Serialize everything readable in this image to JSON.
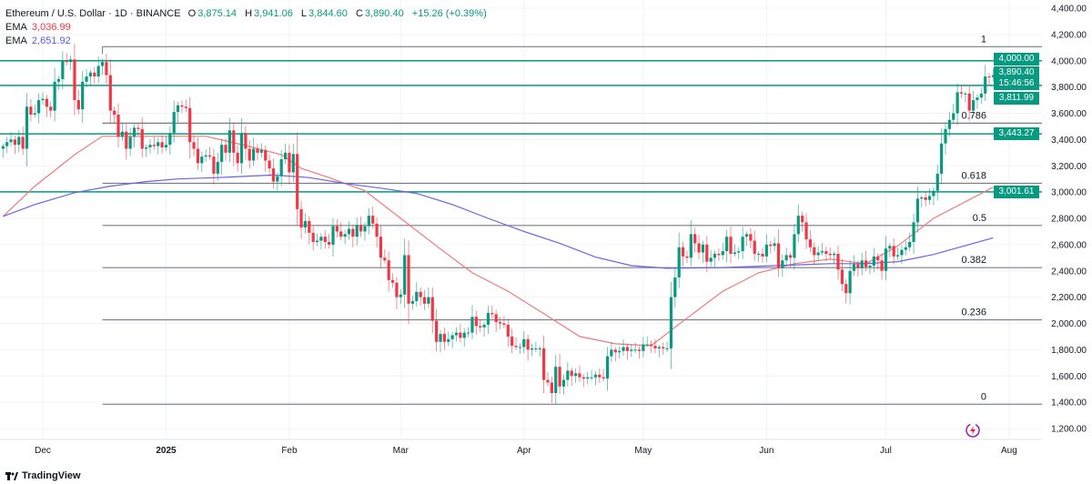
{
  "header": {
    "symbol": "Ethereum / U.S. Dollar · 1D · BINANCE",
    "open_label": "O",
    "open": "3,875.14",
    "high_label": "H",
    "high": "3,941.06",
    "low_label": "L",
    "low": "3,844.60",
    "close_label": "C",
    "close": "3,890.40",
    "change": "+15.26 (+0.39%)",
    "ema1_label": "EMA",
    "ema1_value": "3,036.99",
    "ema2_label": "EMA",
    "ema2_value": "2,651.92"
  },
  "colors": {
    "up": "#089981",
    "down": "#f23645",
    "ema1": "#f07a7a",
    "ema2": "#6a63e8",
    "hline": "#089981",
    "fib": "#787b86"
  },
  "price_labels": {
    "last_price": "3,890.40",
    "countdown": "15:46:56",
    "levels": [
      "4,000.00",
      "3,811.99",
      "3,443.27",
      "3,001.61"
    ]
  },
  "footer": {
    "brand": "TradingView"
  },
  "chart_data": {
    "type": "candlestick",
    "title": "Ethereum / U.S. Dollar · 1D · BINANCE",
    "ylim": [
      1200,
      4400
    ],
    "y_ticks": [
      "4,400.00",
      "4,200.00",
      "4,000.00",
      "3,800.00",
      "3,600.00",
      "3,400.00",
      "3,200.00",
      "3,000.00",
      "2,800.00",
      "2,600.00",
      "2,400.00",
      "2,200.00",
      "2,000.00",
      "1,800.00",
      "1,600.00",
      "1,400.00",
      "1,200.00"
    ],
    "x_ticks": [
      {
        "date": "2024-12-01",
        "label": "Dec"
      },
      {
        "date": "2025-01-01",
        "label": "2025"
      },
      {
        "date": "2025-02-01",
        "label": "Feb"
      },
      {
        "date": "2025-03-01",
        "label": "Mar"
      },
      {
        "date": "2025-04-01",
        "label": "Apr"
      },
      {
        "date": "2025-05-01",
        "label": "May"
      },
      {
        "date": "2025-06-01",
        "label": "Jun"
      },
      {
        "date": "2025-07-01",
        "label": "Jul"
      },
      {
        "date": "2025-08-01",
        "label": "Aug"
      }
    ],
    "start_date": "2024-11-21",
    "closes": [
      3350,
      3380,
      3400,
      3360,
      3420,
      3330,
      3650,
      3590,
      3600,
      3700,
      3710,
      3650,
      3620,
      3840,
      3860,
      4000,
      3990,
      4010,
      3700,
      3630,
      3840,
      3880,
      3910,
      3880,
      3960,
      3990,
      3890,
      3620,
      3590,
      3420,
      3460,
      3330,
      3420,
      3490,
      3480,
      3330,
      3340,
      3360,
      3350,
      3380,
      3340,
      3360,
      3450,
      3610,
      3660,
      3650,
      3640,
      3380,
      3330,
      3220,
      3270,
      3280,
      3270,
      3140,
      3230,
      3360,
      3300,
      3470,
      3300,
      3220,
      3450,
      3330,
      3240,
      3330,
      3300,
      3320,
      3240,
      3180,
      3080,
      3120,
      3250,
      3300,
      3150,
      3290,
      2870,
      2730,
      2780,
      2690,
      2620,
      2630,
      2660,
      2620,
      2600,
      2740,
      2700,
      2660,
      2680,
      2720,
      2660,
      2750,
      2700,
      2740,
      2820,
      2760,
      2660,
      2500,
      2480,
      2330,
      2310,
      2200,
      2220,
      2520,
      2150,
      2170,
      2240,
      2200,
      2150,
      2200,
      2020,
      1860,
      1920,
      1860,
      1880,
      1910,
      1930,
      1890,
      1930,
      1930,
      2050,
      1980,
      1970,
      1990,
      2080,
      2070,
      2010,
      2000,
      1990,
      1900,
      1830,
      1820,
      1820,
      1880,
      1800,
      1810,
      1810,
      1810,
      1570,
      1550,
      1470,
      1670,
      1520,
      1570,
      1640,
      1600,
      1620,
      1590,
      1580,
      1590,
      1590,
      1610,
      1590,
      1580,
      1750,
      1800,
      1780,
      1790,
      1820,
      1790,
      1800,
      1800,
      1790,
      1840,
      1840,
      1830,
      1810,
      1820,
      1810,
      1810,
      2200,
      2350,
      2580,
      2510,
      2500,
      2680,
      2610,
      2540,
      2600,
      2470,
      2500,
      2530,
      2520,
      2550,
      2660,
      2530,
      2540,
      2550,
      2660,
      2680,
      2630,
      2530,
      2530,
      2510,
      2600,
      2590,
      2610,
      2420,
      2480,
      2520,
      2500,
      2680,
      2820,
      2770,
      2640,
      2580,
      2520,
      2540,
      2550,
      2530,
      2520,
      2530,
      2410,
      2300,
      2230,
      2400,
      2450,
      2420,
      2480,
      2430,
      2440,
      2510,
      2480,
      2400,
      2570,
      2590,
      2510,
      2520,
      2560,
      2580,
      2620,
      2770,
      2950,
      2960,
      2940,
      2970,
      3010,
      3140,
      3370,
      3480,
      3550,
      3600,
      3760,
      3750,
      3750,
      3620,
      3700,
      3720,
      3750,
      3880,
      3875.14,
      3890.4
    ],
    "last_candle": {
      "open": 3875.14,
      "high": 3941.06,
      "low": 3844.6,
      "close": 3890.4
    },
    "ema_series": [
      {
        "name": "EMA",
        "value_label": "3,036.99",
        "points": [
          [
            "2024-11-21",
            2815
          ],
          [
            "2024-11-29",
            3045
          ],
          [
            "2024-12-09",
            3285
          ],
          [
            "2024-12-16",
            3425
          ],
          [
            "2024-12-24",
            3425
          ],
          [
            "2025-01-04",
            3425
          ],
          [
            "2025-01-11",
            3425
          ],
          [
            "2025-01-21",
            3355
          ],
          [
            "2025-01-30",
            3285
          ],
          [
            "2025-02-04",
            3180
          ],
          [
            "2025-02-11",
            3110
          ],
          [
            "2025-02-20",
            3010
          ],
          [
            "2025-03-01",
            2800
          ],
          [
            "2025-03-10",
            2590
          ],
          [
            "2025-03-19",
            2385
          ],
          [
            "2025-03-28",
            2245
          ],
          [
            "2025-04-06",
            2075
          ],
          [
            "2025-04-15",
            1900
          ],
          [
            "2025-04-24",
            1845
          ],
          [
            "2025-05-03",
            1830
          ],
          [
            "2025-05-12",
            2040
          ],
          [
            "2025-05-21",
            2245
          ],
          [
            "2025-05-30",
            2385
          ],
          [
            "2025-06-08",
            2455
          ],
          [
            "2025-06-17",
            2490
          ],
          [
            "2025-06-26",
            2455
          ],
          [
            "2025-07-04",
            2590
          ],
          [
            "2025-07-13",
            2800
          ],
          [
            "2025-07-28",
            3037
          ]
        ]
      },
      {
        "name": "EMA",
        "value_label": "2,651.92",
        "points": [
          [
            "2024-11-21",
            2815
          ],
          [
            "2024-11-29",
            2905
          ],
          [
            "2024-12-09",
            2995
          ],
          [
            "2024-12-18",
            3045
          ],
          [
            "2024-12-27",
            3080
          ],
          [
            "2025-01-04",
            3100
          ],
          [
            "2025-01-14",
            3110
          ],
          [
            "2025-01-28",
            3130
          ],
          [
            "2025-02-06",
            3110
          ],
          [
            "2025-02-15",
            3065
          ],
          [
            "2025-02-24",
            3030
          ],
          [
            "2025-03-05",
            2990
          ],
          [
            "2025-03-14",
            2905
          ],
          [
            "2025-03-23",
            2800
          ],
          [
            "2025-04-01",
            2700
          ],
          [
            "2025-04-10",
            2610
          ],
          [
            "2025-04-19",
            2505
          ],
          [
            "2025-04-28",
            2440
          ],
          [
            "2025-05-07",
            2420
          ],
          [
            "2025-05-21",
            2425
          ],
          [
            "2025-06-03",
            2440
          ],
          [
            "2025-06-17",
            2455
          ],
          [
            "2025-06-26",
            2455
          ],
          [
            "2025-07-04",
            2470
          ],
          [
            "2025-07-13",
            2525
          ],
          [
            "2025-07-28",
            2652
          ]
        ]
      }
    ],
    "horizontal_levels": [
      4000.0,
      3811.99,
      3443.27,
      3001.61
    ],
    "fibonacci": {
      "start_date": "2024-12-16",
      "low": 1385,
      "high": 4107,
      "levels": [
        {
          "ratio": 1,
          "label": "1"
        },
        {
          "ratio": 0.786,
          "label": "0.786"
        },
        {
          "ratio": 0.618,
          "label": "0.618"
        },
        {
          "ratio": 0.5,
          "label": "0.5"
        },
        {
          "ratio": 0.382,
          "label": "0.382"
        },
        {
          "ratio": 0.236,
          "label": "0.236"
        },
        {
          "ratio": 0,
          "label": "0"
        }
      ]
    },
    "grid": true
  }
}
